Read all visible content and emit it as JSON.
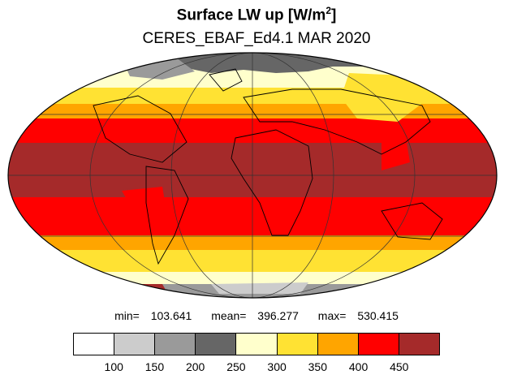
{
  "title": "Surface LW up [W/m",
  "title_sup": "2",
  "title_end": "]",
  "subtitle": "CERES_EBAF_Ed4.1 MAR 2020",
  "stats": {
    "min_label": "min=",
    "min": "103.641",
    "mean_label": "mean=",
    "mean": "396.277",
    "max_label": "max=",
    "max": "530.415"
  },
  "colorbar": {
    "colors": [
      "#ffffff",
      "#cccccc",
      "#9a9a9a",
      "#666666",
      "#ffffcc",
      "#ffe233",
      "#ffa500",
      "#ff0000",
      "#a52a2a"
    ],
    "labels": [
      "100",
      "150",
      "200",
      "250",
      "300",
      "350",
      "400",
      "450"
    ]
  },
  "map_colors": {
    "ocean_land_bg": "#a52a2a",
    "red": "#ff0000",
    "orange": "#ffa500",
    "yellow": "#ffe233",
    "pale": "#ffffcc",
    "dark_gray": "#666666",
    "mid_gray": "#9a9a9a",
    "light_gray": "#cccccc",
    "white": "#ffffff"
  }
}
